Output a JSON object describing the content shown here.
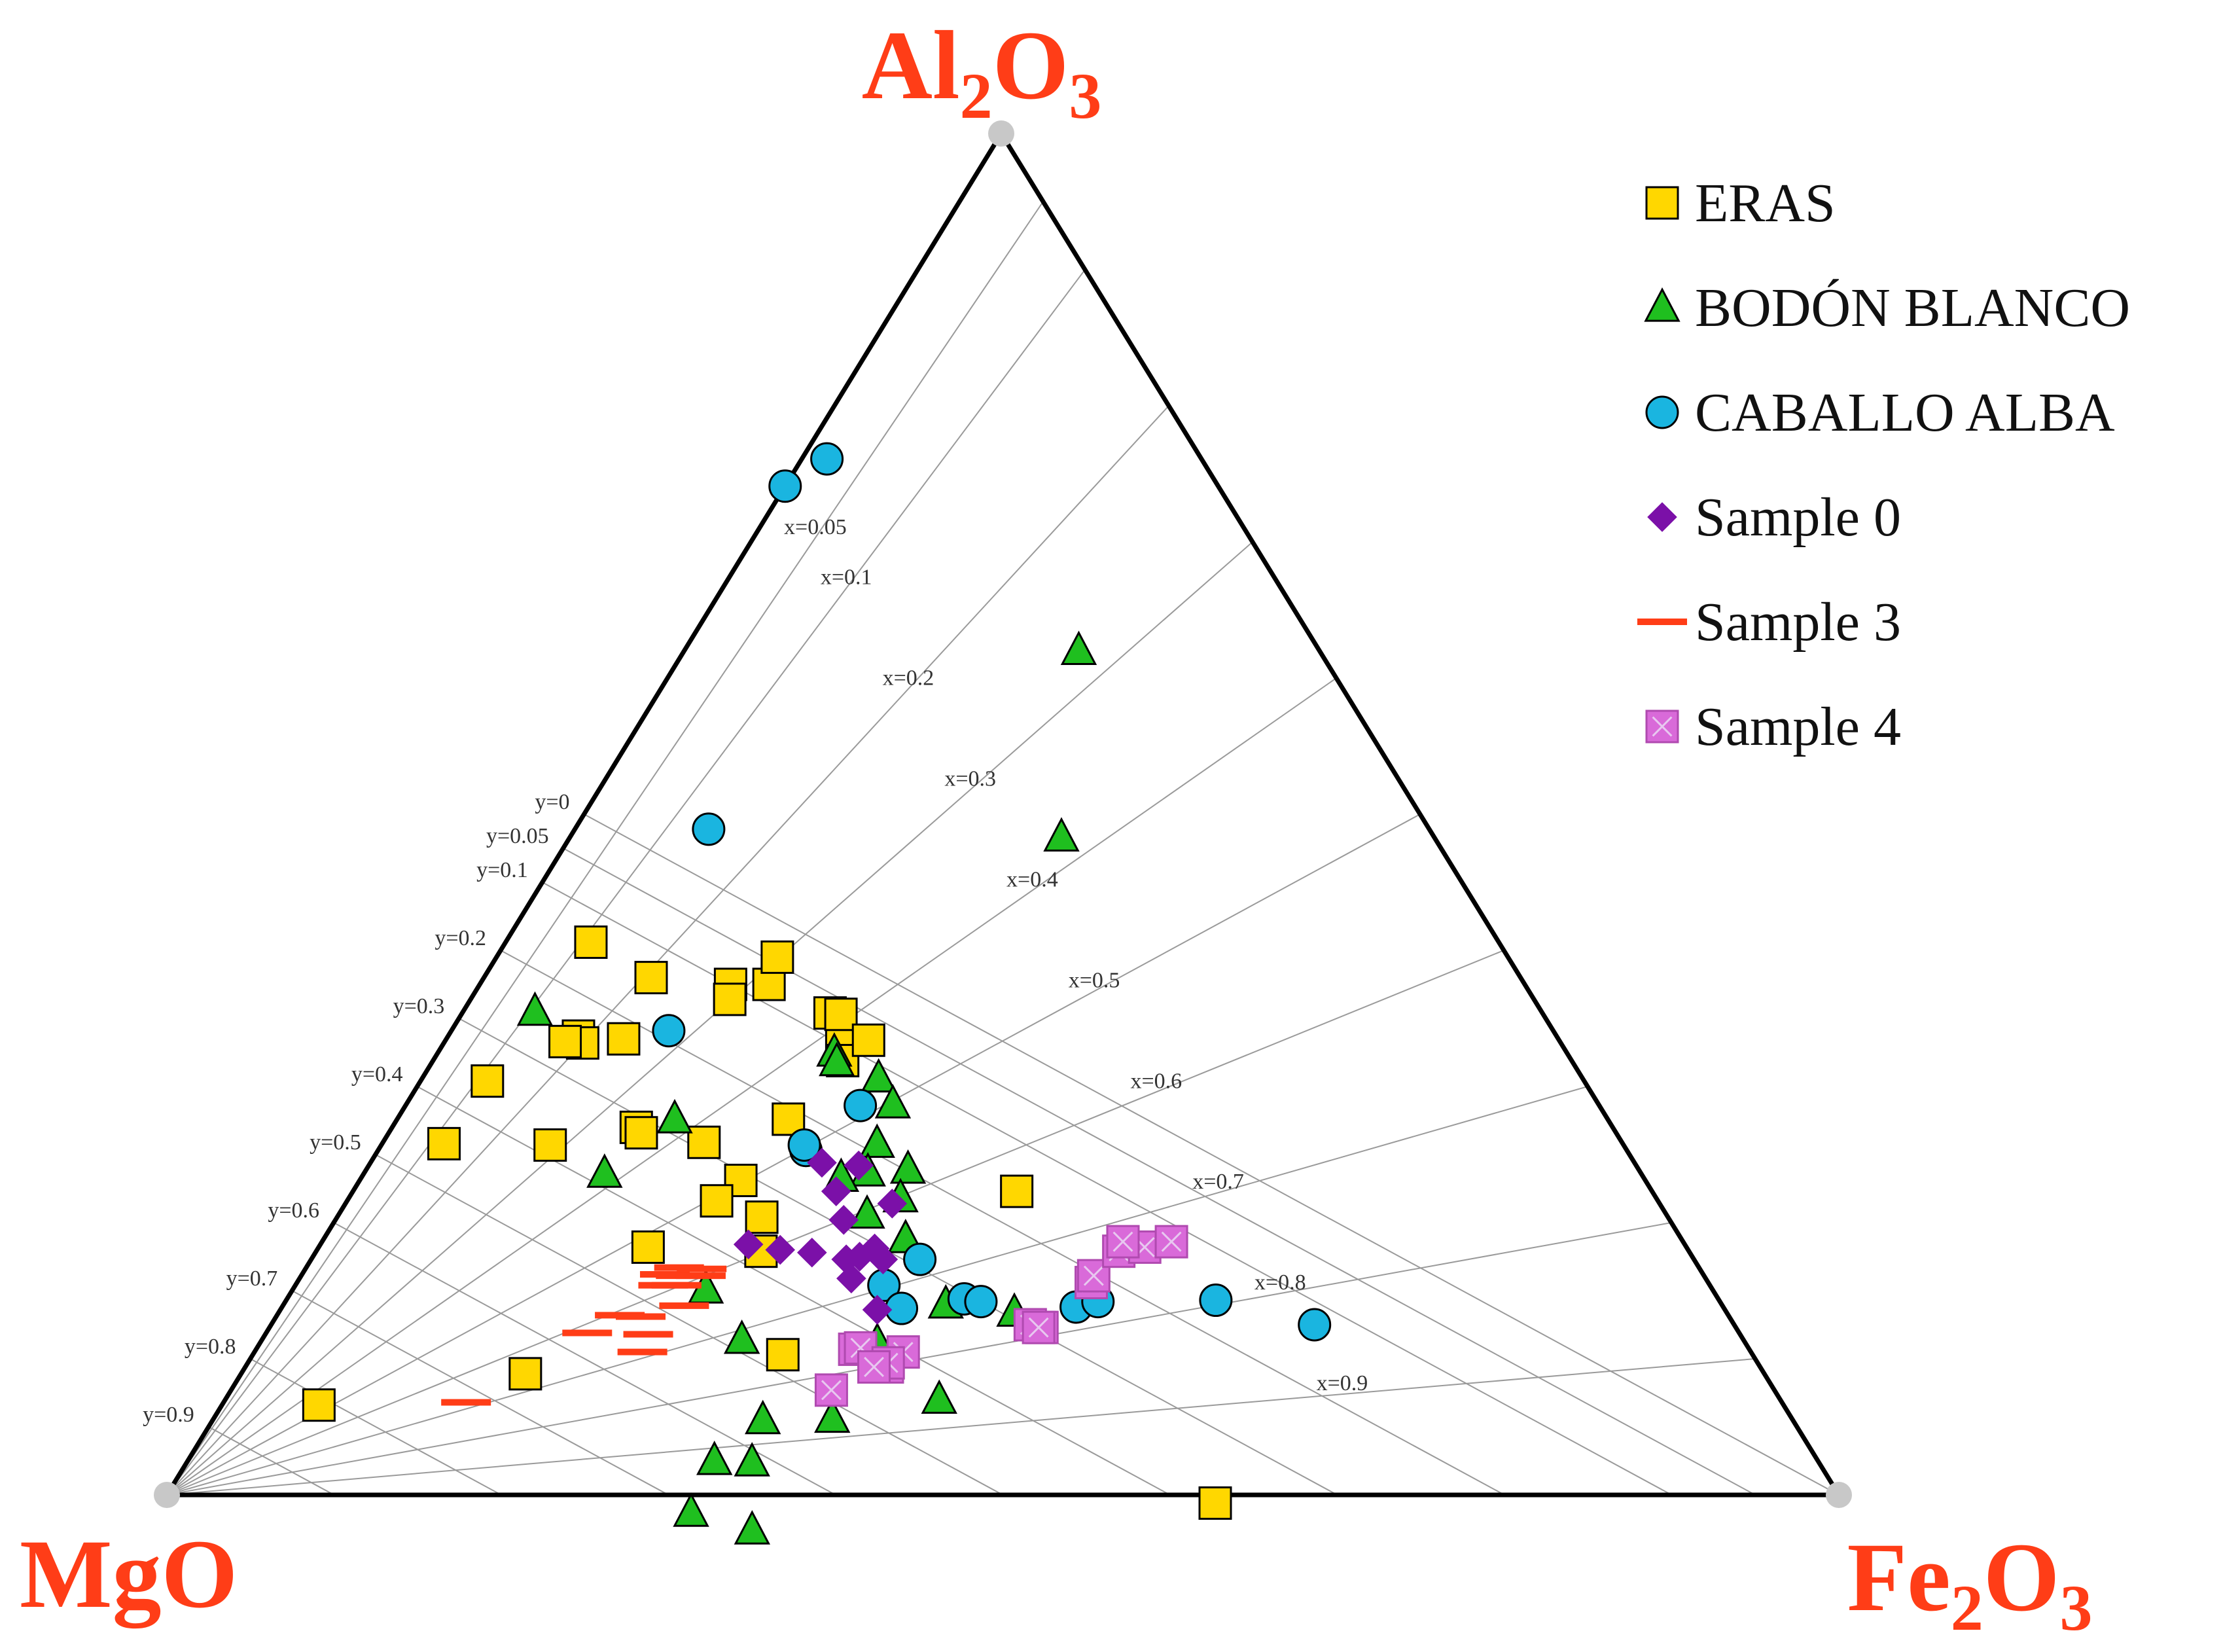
{
  "chart_data": {
    "type": "scatter",
    "subtype": "ternary",
    "corners": {
      "top": {
        "base": "Al",
        "sub1": "2",
        "mid": "O",
        "sub2": "3"
      },
      "left": {
        "base": "MgO",
        "sub1": "",
        "mid": "",
        "sub2": ""
      },
      "right": {
        "base": "Fe",
        "sub1": "2",
        "mid": "O",
        "sub2": "3"
      }
    },
    "iso_x": [
      {
        "value": 0.05,
        "label": "x=0.05"
      },
      {
        "value": 0.1,
        "label": "x=0.1"
      },
      {
        "value": 0.2,
        "label": "x=0.2"
      },
      {
        "value": 0.3,
        "label": "x=0.3"
      },
      {
        "value": 0.4,
        "label": "x=0.4"
      },
      {
        "value": 0.5,
        "label": "x=0.5"
      },
      {
        "value": 0.6,
        "label": "x=0.6"
      },
      {
        "value": 0.7,
        "label": "x=0.7"
      },
      {
        "value": 0.8,
        "label": "x=0.8"
      },
      {
        "value": 0.9,
        "label": "x=0.9"
      }
    ],
    "iso_y": [
      {
        "value": 0,
        "label": "y=0"
      },
      {
        "value": 0.05,
        "label": "y=0.05"
      },
      {
        "value": 0.1,
        "label": "y=0.1"
      },
      {
        "value": 0.2,
        "label": "y=0.2"
      },
      {
        "value": 0.3,
        "label": "y=0.3"
      },
      {
        "value": 0.4,
        "label": "y=0.4"
      },
      {
        "value": 0.5,
        "label": "y=0.5"
      },
      {
        "value": 0.6,
        "label": "y=0.6"
      },
      {
        "value": 0.7,
        "label": "y=0.7"
      },
      {
        "value": 0.8,
        "label": "y=0.8"
      },
      {
        "value": 0.9,
        "label": "y=0.9"
      }
    ],
    "point_coords": "Each point is [MgO, Fe2O3] fraction; Al2O3 = 1 - MgO - Fe2O3",
    "series": [
      {
        "name": "ERAS",
        "marker": "square",
        "color": "#ffd700",
        "points": [
          [
            0.49,
            0.234
          ],
          [
            0.38,
            0.397
          ],
          [
            0.426,
            0.22
          ],
          [
            0.43,
            0.238
          ],
          [
            0.436,
            0.245
          ],
          [
            0.42,
            0.227
          ],
          [
            0.413,
            0.253
          ],
          [
            0.475,
            0.15
          ],
          [
            0.481,
            0.155
          ],
          [
            0.452,
            0.173
          ],
          [
            0.437,
            0.168
          ],
          [
            0.52,
            0.1
          ],
          [
            0.543,
            0.051
          ],
          [
            0.585,
            0.078
          ],
          [
            0.585,
            0.083
          ],
          [
            0.595,
            0.072
          ],
          [
            0.559,
            0.106
          ],
          [
            0.584,
            0.146
          ],
          [
            0.583,
            0.151
          ],
          [
            0.642,
            0.101
          ],
          [
            0.705,
            0.037
          ],
          [
            0.549,
            0.192
          ],
          [
            0.541,
            0.228
          ],
          [
            0.621,
            0.197
          ],
          [
            0.563,
            0.221
          ],
          [
            0.542,
            0.254
          ],
          [
            0.555,
            0.266
          ],
          [
            0.58,
            0.317
          ],
          [
            0.656,
            0.04
          ],
          [
            0.741,
            0.17
          ],
          [
            0.876,
            0.058
          ],
          [
            0.376,
            0.63
          ]
        ]
      },
      {
        "name": "BODÓN BLANCO",
        "marker": "triangle",
        "color": "#1fbf1f",
        "points": [
          [
            0.144,
            0.236
          ],
          [
            0.223,
            0.294
          ],
          [
            0.438,
            0.237
          ],
          [
            0.421,
            0.273
          ],
          [
            0.44,
            0.242
          ],
          [
            0.422,
            0.291
          ],
          [
            0.437,
            0.324
          ],
          [
            0.446,
            0.296
          ],
          [
            0.462,
            0.301
          ],
          [
            0.452,
            0.33
          ],
          [
            0.478,
            0.316
          ],
          [
            0.48,
            0.287
          ],
          [
            0.464,
            0.348
          ],
          [
            0.464,
            0.396
          ],
          [
            0.426,
            0.44
          ],
          [
            0.503,
            0.427
          ],
          [
            0.525,
            0.382
          ],
          [
            0.519,
            0.369
          ],
          [
            0.602,
            0.043
          ],
          [
            0.62,
            0.144
          ],
          [
            0.558,
            0.166
          ],
          [
            0.602,
            0.247
          ],
          [
            0.599,
            0.287
          ],
          [
            0.616,
            0.329
          ],
          [
            0.574,
            0.37
          ],
          [
            0.638,
            0.338
          ],
          [
            0.66,
            0.315
          ],
          [
            0.663,
            0.363
          ],
          [
            0.693,
            0.32
          ]
        ]
      },
      {
        "name": "CABALLO ALBA",
        "marker": "circle",
        "color": "#1ab5e0",
        "points": [
          [
            0.259,
            0.0
          ],
          [
            0.224,
            0.015
          ],
          [
            0.431,
            0.08
          ],
          [
            0.529,
            0.13
          ],
          [
            0.442,
            0.272
          ],
          [
            0.491,
            0.256
          ],
          [
            0.49,
            0.253
          ],
          [
            0.463,
            0.364
          ],
          [
            0.494,
            0.352
          ],
          [
            0.492,
            0.371
          ],
          [
            0.451,
            0.405
          ],
          [
            0.442,
            0.416
          ],
          [
            0.387,
            0.475
          ],
          [
            0.372,
            0.486
          ],
          [
            0.301,
            0.556
          ],
          [
            0.251,
            0.624
          ]
        ]
      },
      {
        "name": "Sample 0",
        "marker": "diamond",
        "color": "#7b10a8",
        "points": [
          [
            0.56,
            0.256
          ],
          [
            0.543,
            0.277
          ],
          [
            0.525,
            0.297
          ],
          [
            0.488,
            0.289
          ],
          [
            0.486,
            0.27
          ],
          [
            0.494,
            0.304
          ],
          [
            0.498,
            0.327
          ],
          [
            0.465,
            0.293
          ],
          [
            0.459,
            0.327
          ],
          [
            0.486,
            0.333
          ],
          [
            0.485,
            0.342
          ],
          [
            0.507,
            0.32
          ],
          [
            0.511,
            0.33
          ],
          [
            0.507,
            0.357
          ]
        ]
      },
      {
        "name": "Sample 3",
        "marker": "dash",
        "color": "#ff3d17",
        "points": [
          [
            0.626,
            0.22
          ],
          [
            0.621,
            0.217
          ],
          [
            0.61,
            0.223
          ],
          [
            0.612,
            0.227
          ],
          [
            0.618,
            0.228
          ],
          [
            0.6,
            0.239
          ],
          [
            0.621,
            0.24
          ],
          [
            0.597,
            0.237
          ],
          [
            0.663,
            0.205
          ],
          [
            0.651,
            0.218
          ],
          [
            0.689,
            0.192
          ],
          [
            0.663,
            0.232
          ],
          [
            0.653,
            0.229
          ],
          [
            0.787,
            0.145
          ]
        ]
      },
      {
        "name": "Sample 4",
        "marker": "boxcross",
        "color": "#d96ad9",
        "points": [
          [
            0.564,
            0.359
          ],
          [
            0.535,
            0.358
          ],
          [
            0.531,
            0.361
          ],
          [
            0.507,
            0.388
          ],
          [
            0.522,
            0.384
          ],
          [
            0.52,
            0.383
          ],
          [
            0.53,
            0.376
          ],
          [
            0.421,
            0.454
          ],
          [
            0.415,
            0.462
          ],
          [
            0.417,
            0.46
          ],
          [
            0.369,
            0.475
          ],
          [
            0.365,
            0.474
          ],
          [
            0.341,
            0.48
          ],
          [
            0.324,
            0.494
          ],
          [
            0.335,
            0.479
          ],
          [
            0.306,
            0.508
          ]
        ]
      }
    ]
  }
}
